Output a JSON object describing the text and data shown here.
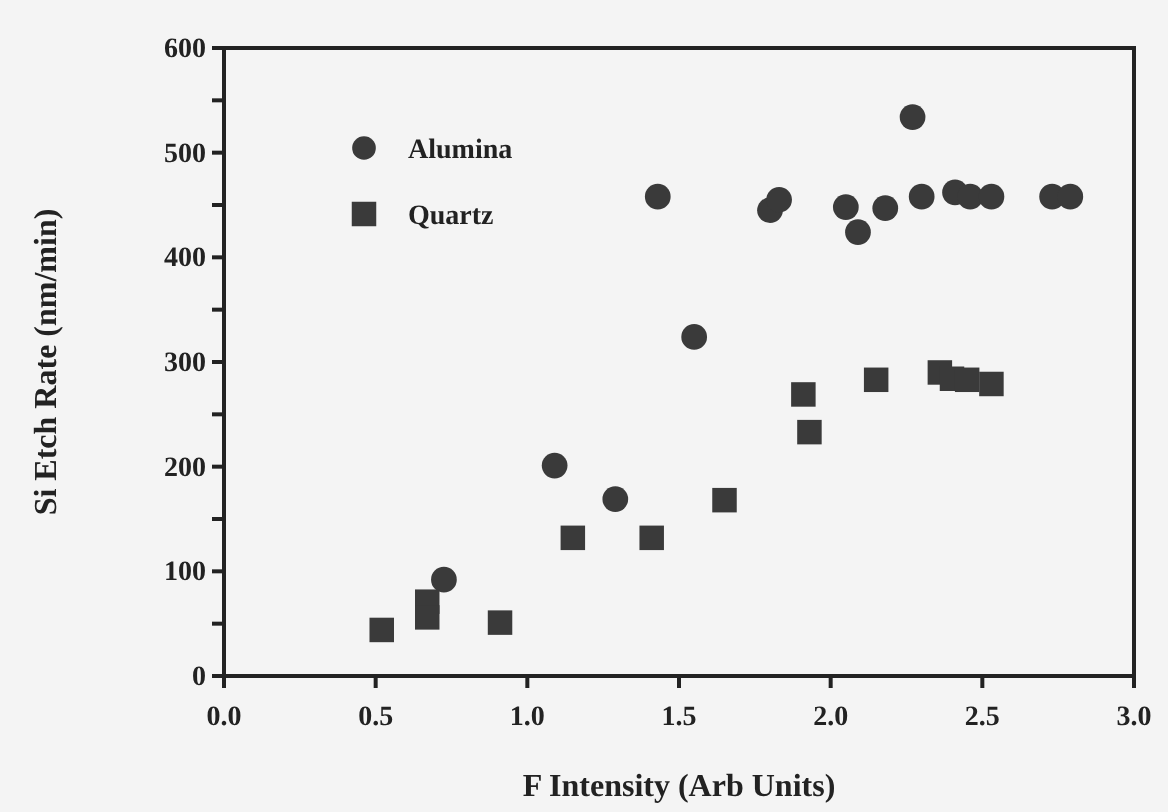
{
  "chart_data": {
    "type": "scatter",
    "xlabel": "F Intensity (Arb Units)",
    "ylabel": "Si Etch Rate (nm/min)",
    "xlim": [
      0,
      3
    ],
    "xticks": [
      {
        "value": 0,
        "label": "0.0"
      },
      {
        "value": 0.5,
        "label": "0.5"
      },
      {
        "value": 1,
        "label": "1.0"
      },
      {
        "value": 1.5,
        "label": "1.5"
      },
      {
        "value": 2,
        "label": "2.0"
      },
      {
        "value": 2.5,
        "label": "2.5"
      },
      {
        "value": 3,
        "label": "3.0"
      }
    ],
    "ylim": [
      0,
      600
    ],
    "yticks": [
      0,
      {
        "value": 50,
        "label": null
      },
      100,
      {
        "value": 150,
        "label": null
      },
      200,
      {
        "value": 250,
        "label": null
      },
      300,
      {
        "value": 350,
        "label": null
      },
      400,
      {
        "value": 450,
        "label": null
      },
      500,
      {
        "value": 550,
        "label": null
      },
      600
    ],
    "grid": false,
    "legend": "top left",
    "series": [
      {
        "name": "Alumina",
        "color": "#3a3a3a",
        "marker": "circle",
        "x": [
          0.725,
          1.09,
          1.29,
          1.43,
          1.55,
          1.8,
          1.83,
          2.05,
          2.09,
          2.18,
          2.27,
          2.3,
          2.41,
          2.46,
          2.53,
          2.73,
          2.79
        ],
        "values": [
          92,
          201,
          169,
          458,
          324,
          445,
          455,
          448,
          424,
          447,
          534,
          458,
          462,
          458,
          458,
          458,
          458
        ]
      },
      {
        "name": "Quartz",
        "color": "#3a3a3a",
        "marker": "square",
        "x": [
          0.52,
          0.67,
          0.67,
          0.91,
          1.15,
          1.41,
          1.65,
          1.91,
          1.93,
          2.15,
          2.36,
          2.4,
          2.45,
          2.53
        ],
        "values": [
          44,
          71,
          56,
          51,
          132,
          132,
          168,
          269,
          233,
          283,
          290,
          284,
          283,
          279
        ]
      }
    ]
  }
}
